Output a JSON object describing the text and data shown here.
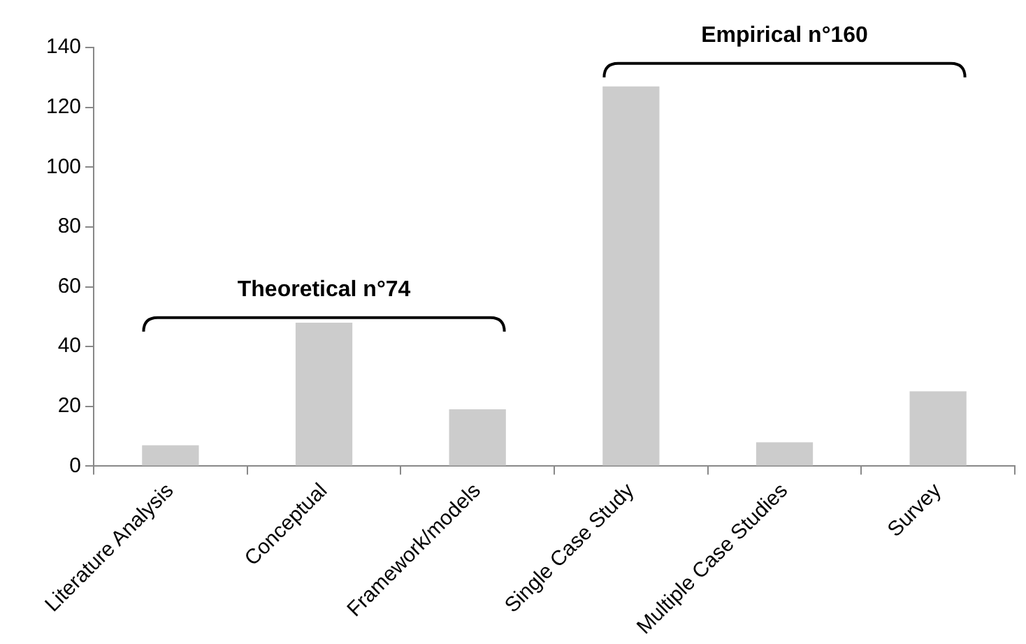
{
  "chart_data": {
    "type": "bar",
    "categories": [
      "Literature Analysis",
      "Conceptual",
      "Framework/models",
      "Single Case Study",
      "Multiple Case Studies",
      "Survey"
    ],
    "values": [
      7,
      48,
      19,
      127,
      8,
      25
    ],
    "color": "#cccccc",
    "ylim": [
      0,
      140
    ],
    "yticks": [
      0,
      20,
      40,
      60,
      80,
      100,
      120,
      140
    ],
    "grid": false,
    "legend": false,
    "annotations": [
      "Theoretical n°74",
      "Empirical n°160"
    ]
  }
}
